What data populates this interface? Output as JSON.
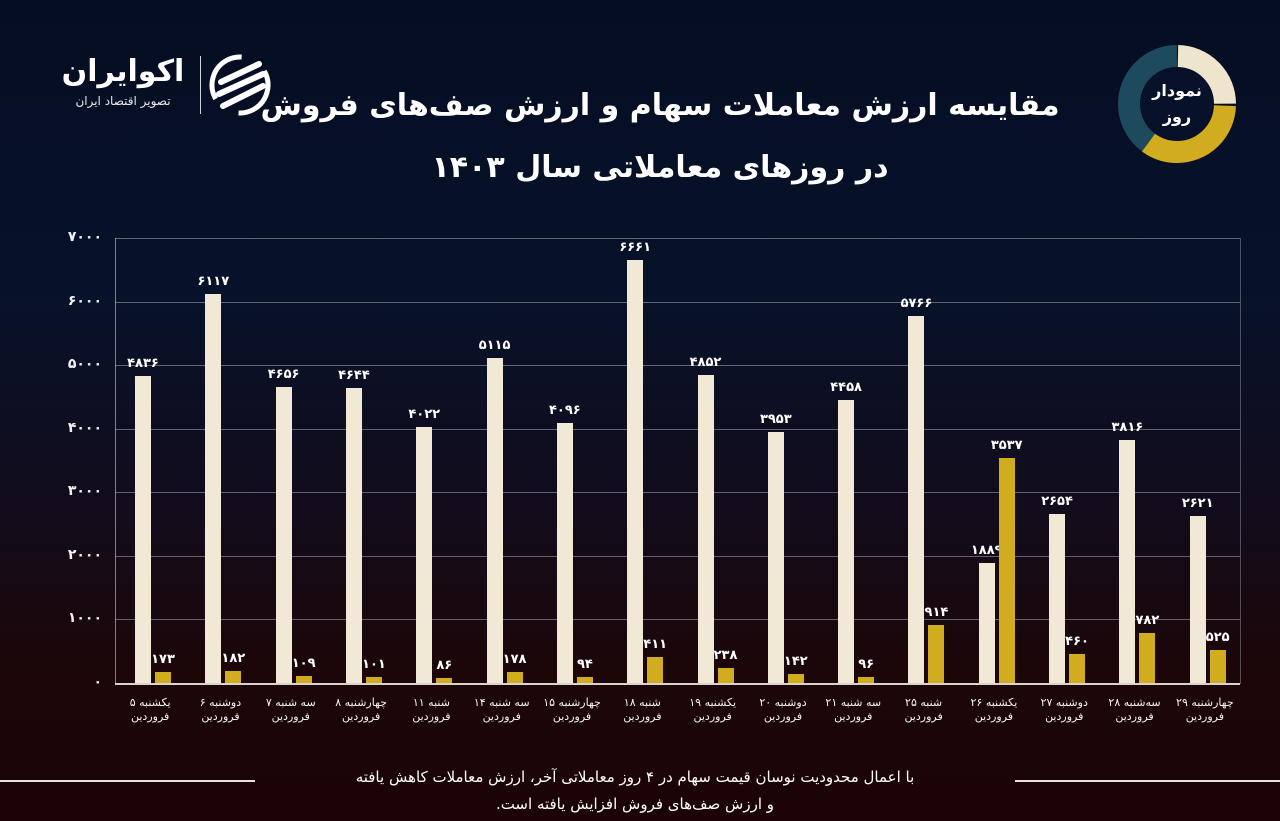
{
  "header": {
    "logo_name": "اکوایران",
    "logo_tagline": "تصویر اقتصاد ایران",
    "title_line1": "مقایسه ارزش معاملات سهام و ارزش صف‌های فروش",
    "title_line2": "در روزهای معاملاتی سال ۱۴۰۳",
    "badge_line1": "نمودار",
    "badge_line2": "روز"
  },
  "colors": {
    "trade_value": "#f1e8d6",
    "sell_queue": "#d1ac1f",
    "badge_teal": "#1d4a5c",
    "background_top": "#050d22",
    "background_bottom": "#1c0406"
  },
  "chart_data": {
    "type": "bar",
    "title": "مقایسه ارزش معاملات سهام و ارزش صف‌های فروش در روزهای معاملاتی سال ۱۴۰۳",
    "xlabel": "",
    "ylabel": "",
    "ylim": [
      0,
      7000
    ],
    "yticks": [
      0,
      1000,
      2000,
      3000,
      4000,
      5000,
      6000,
      7000
    ],
    "ytick_labels": [
      "۰",
      "۱۰۰۰",
      "۲۰۰۰",
      "۳۰۰۰",
      "۴۰۰۰",
      "۵۰۰۰",
      "۶۰۰۰",
      "۷۰۰۰"
    ],
    "grid": true,
    "legend": "none",
    "categories": [
      "یکشنبه ۵ فروردین",
      "دوشنبه ۶ فروردین",
      "سه شنبه ۷ فروردین",
      "چهارشنبه ۸ فروردین",
      "شنبه ۱۱ فروردین",
      "سه شنبه ۱۴ فروردین",
      "چهارشنبه ۱۵ فروردین",
      "شنبه ۱۸ فروردین",
      "یکشنبه ۱۹ فروردین",
      "دوشنبه ۲۰ فروردین",
      "سه شنبه ۲۱ فروردین",
      "شنبه ۲۵ فروردین",
      "یکشنبه ۲۶ فروردین",
      "دوشنبه ۲۷ فروردین",
      "سه‌شنبه ۲۸ فروردین",
      "چهارشنبه ۲۹ فروردین"
    ],
    "category_lines": [
      [
        "یکشنبه ۵",
        "فروردین"
      ],
      [
        "دوشنبه ۶",
        "فروردین"
      ],
      [
        "سه شنبه ۷",
        "فروردین"
      ],
      [
        "چهارشنبه ۸",
        "فروردین"
      ],
      [
        "شنبه ۱۱",
        "فروردین"
      ],
      [
        "سه شنبه ۱۴",
        "فروردین"
      ],
      [
        "چهارشنبه ۱۵",
        "فروردین"
      ],
      [
        "شنبه ۱۸",
        "فروردین"
      ],
      [
        "یکشنبه ۱۹",
        "فروردین"
      ],
      [
        "دوشنبه ۲۰",
        "فروردین"
      ],
      [
        "سه شنبه ۲۱",
        "فروردین"
      ],
      [
        "شنبه ۲۵",
        "فروردین"
      ],
      [
        "یکشنبه ۲۶",
        "فروردین"
      ],
      [
        "دوشنبه ۲۷",
        "فروردین"
      ],
      [
        "سه‌شنبه ۲۸",
        "فروردین"
      ],
      [
        "چهارشنبه ۲۹",
        "فروردین"
      ]
    ],
    "series": [
      {
        "name": "ارزش معاملات سهام",
        "color": "#f1e8d6",
        "values": [
          4836,
          6117,
          4656,
          4644,
          4022,
          5115,
          4096,
          6661,
          4852,
          3953,
          4458,
          5766,
          1889,
          2654,
          3816,
          2621
        ],
        "labels": [
          "۴۸۳۶",
          "۶۱۱۷",
          "۴۶۵۶",
          "۴۶۴۴",
          "۴۰۲۲",
          "۵۱۱۵",
          "۴۰۹۶",
          "۶۶۶۱",
          "۴۸۵۲",
          "۳۹۵۳",
          "۴۴۵۸",
          "۵۷۶۶",
          "۱۸۸۹",
          "۲۶۵۴",
          "۳۸۱۶",
          "۲۶۲۱"
        ]
      },
      {
        "name": "ارزش صف‌های فروش",
        "color": "#d1ac1f",
        "values": [
          173,
          182,
          109,
          101,
          86,
          178,
          94,
          411,
          238,
          142,
          96,
          914,
          3537,
          460,
          782,
          525
        ],
        "labels": [
          "۱۷۳",
          "۱۸۲",
          "۱۰۹",
          "۱۰۱",
          "۸۶",
          "۱۷۸",
          "۹۴",
          "۴۱۱",
          "۲۳۸",
          "۱۴۲",
          "۹۶",
          "۹۱۴",
          "۳۵۳۷",
          "۴۶۰",
          "۷۸۲",
          "۵۲۵"
        ]
      }
    ]
  },
  "footer": {
    "note_line1": "با اعمال محدودیت نوسان قیمت سهام در ۴ روز معاملاتی آخر، ارزش معاملات کاهش یافته",
    "note_line2": "و ارزش صف‌های فروش افزایش یافته است."
  }
}
